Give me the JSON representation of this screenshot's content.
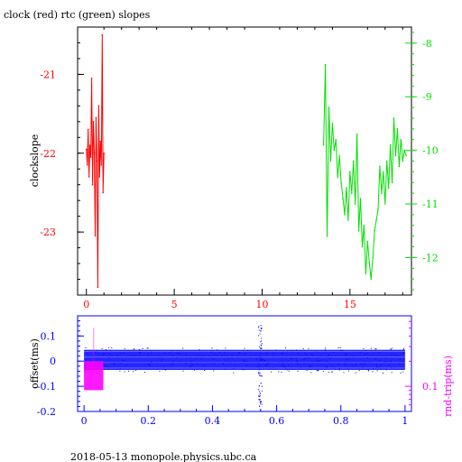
{
  "title": "clock (red) rtc (green) slopes",
  "footer": "2018-05-13  monopole.physics.ubc.ca",
  "colors": {
    "clock": "#ff0000",
    "rtc": "#00e000",
    "offset": "#0000ff",
    "rndtrip": "#ff00ff",
    "axis": "#000000"
  },
  "chart_data": [
    {
      "type": "line",
      "title": "clock (red) rtc (green) slopes",
      "xlim": [
        -0.5,
        18.5
      ],
      "x_ticks": [
        "0",
        "5",
        "10",
        "15"
      ],
      "ylabel": "clockslope",
      "ylim_left": [
        -23.8,
        -20.4
      ],
      "y_ticks_left": [
        "-21",
        "-22",
        "-23"
      ],
      "ylim_right": [
        -12.7,
        -7.7
      ],
      "y_ticks_right": [
        "-8",
        "-9",
        "-10",
        "-11",
        "-12"
      ],
      "grid": false,
      "series": [
        {
          "name": "clock",
          "axis": "left",
          "x": [
            0.0,
            0.05,
            0.1,
            0.15,
            0.2,
            0.25,
            0.3,
            0.35,
            0.4,
            0.45,
            0.5,
            0.55,
            0.6,
            0.65,
            0.7,
            0.75,
            0.8,
            0.85,
            0.9,
            0.95,
            1.0
          ],
          "y": [
            -21.95,
            -22.15,
            -21.7,
            -22.3,
            -21.9,
            -22.05,
            -21.05,
            -22.4,
            -21.6,
            -22.0,
            -23.05,
            -21.55,
            -22.1,
            -23.7,
            -21.4,
            -22.3,
            -21.85,
            -22.15,
            -20.5,
            -22.5,
            -22.0
          ]
        },
        {
          "name": "rtc",
          "axis": "right",
          "x": [
            13.5,
            13.6,
            13.7,
            13.8,
            13.9,
            14.0,
            14.1,
            14.2,
            14.3,
            14.4,
            14.5,
            14.6,
            14.7,
            14.8,
            14.9,
            15.0,
            15.1,
            15.2,
            15.3,
            15.4,
            15.5,
            15.6,
            15.7,
            15.8,
            15.9,
            16.0,
            16.1,
            16.2,
            16.3,
            16.4,
            16.5,
            16.6,
            16.7,
            16.8,
            16.9,
            17.0,
            17.1,
            17.2,
            17.3,
            17.4,
            17.5,
            17.6,
            17.7,
            17.8,
            17.9,
            18.0,
            18.1,
            18.2
          ],
          "y": [
            -9.9,
            -8.4,
            -11.6,
            -9.2,
            -10.2,
            -9.5,
            -10.0,
            -9.8,
            -10.5,
            -10.1,
            -10.6,
            -10.9,
            -11.2,
            -10.7,
            -11.3,
            -10.4,
            -10.8,
            -10.2,
            -11.0,
            -9.7,
            -11.5,
            -10.9,
            -11.8,
            -11.4,
            -12.3,
            -11.7,
            -12.1,
            -12.4,
            -12.0,
            -11.5,
            -11.3,
            -11.1,
            -10.3,
            -10.8,
            -10.4,
            -11.0,
            -10.2,
            -10.7,
            -9.9,
            -10.6,
            -9.4,
            -10.1,
            -9.6,
            -10.3,
            -9.8,
            -10.2,
            -10.0,
            -10.1
          ]
        }
      ]
    },
    {
      "type": "scatter",
      "xlim": [
        -0.02,
        1.02
      ],
      "x_ticks": [
        "0",
        "0.2",
        "0.4",
        "0.6",
        "0.8",
        "1"
      ],
      "ylabel": "offset(ms)",
      "ylim": [
        -0.2,
        0.18
      ],
      "y_ticks": [
        "0.1",
        "0",
        "-0.1",
        "-0.2"
      ],
      "ylabel_right": "rnd-trip(ms)",
      "y_ticks_right": [
        "0.1"
      ],
      "grid": false,
      "series": [
        {
          "name": "offset",
          "band_x": [
            0.0,
            1.0
          ],
          "band_y": [
            -0.035,
            0.045
          ],
          "spike_x": [
            0.545,
            0.55
          ],
          "spike_y": [
            -0.18,
            0.16
          ]
        },
        {
          "name": "rnd-trip",
          "band_x": [
            0.0,
            0.06
          ],
          "band_y_ms": [
            0.09,
            0.2
          ],
          "spike_x": [
            0.03
          ],
          "spike_y_ms": [
            0.5
          ]
        }
      ]
    }
  ]
}
